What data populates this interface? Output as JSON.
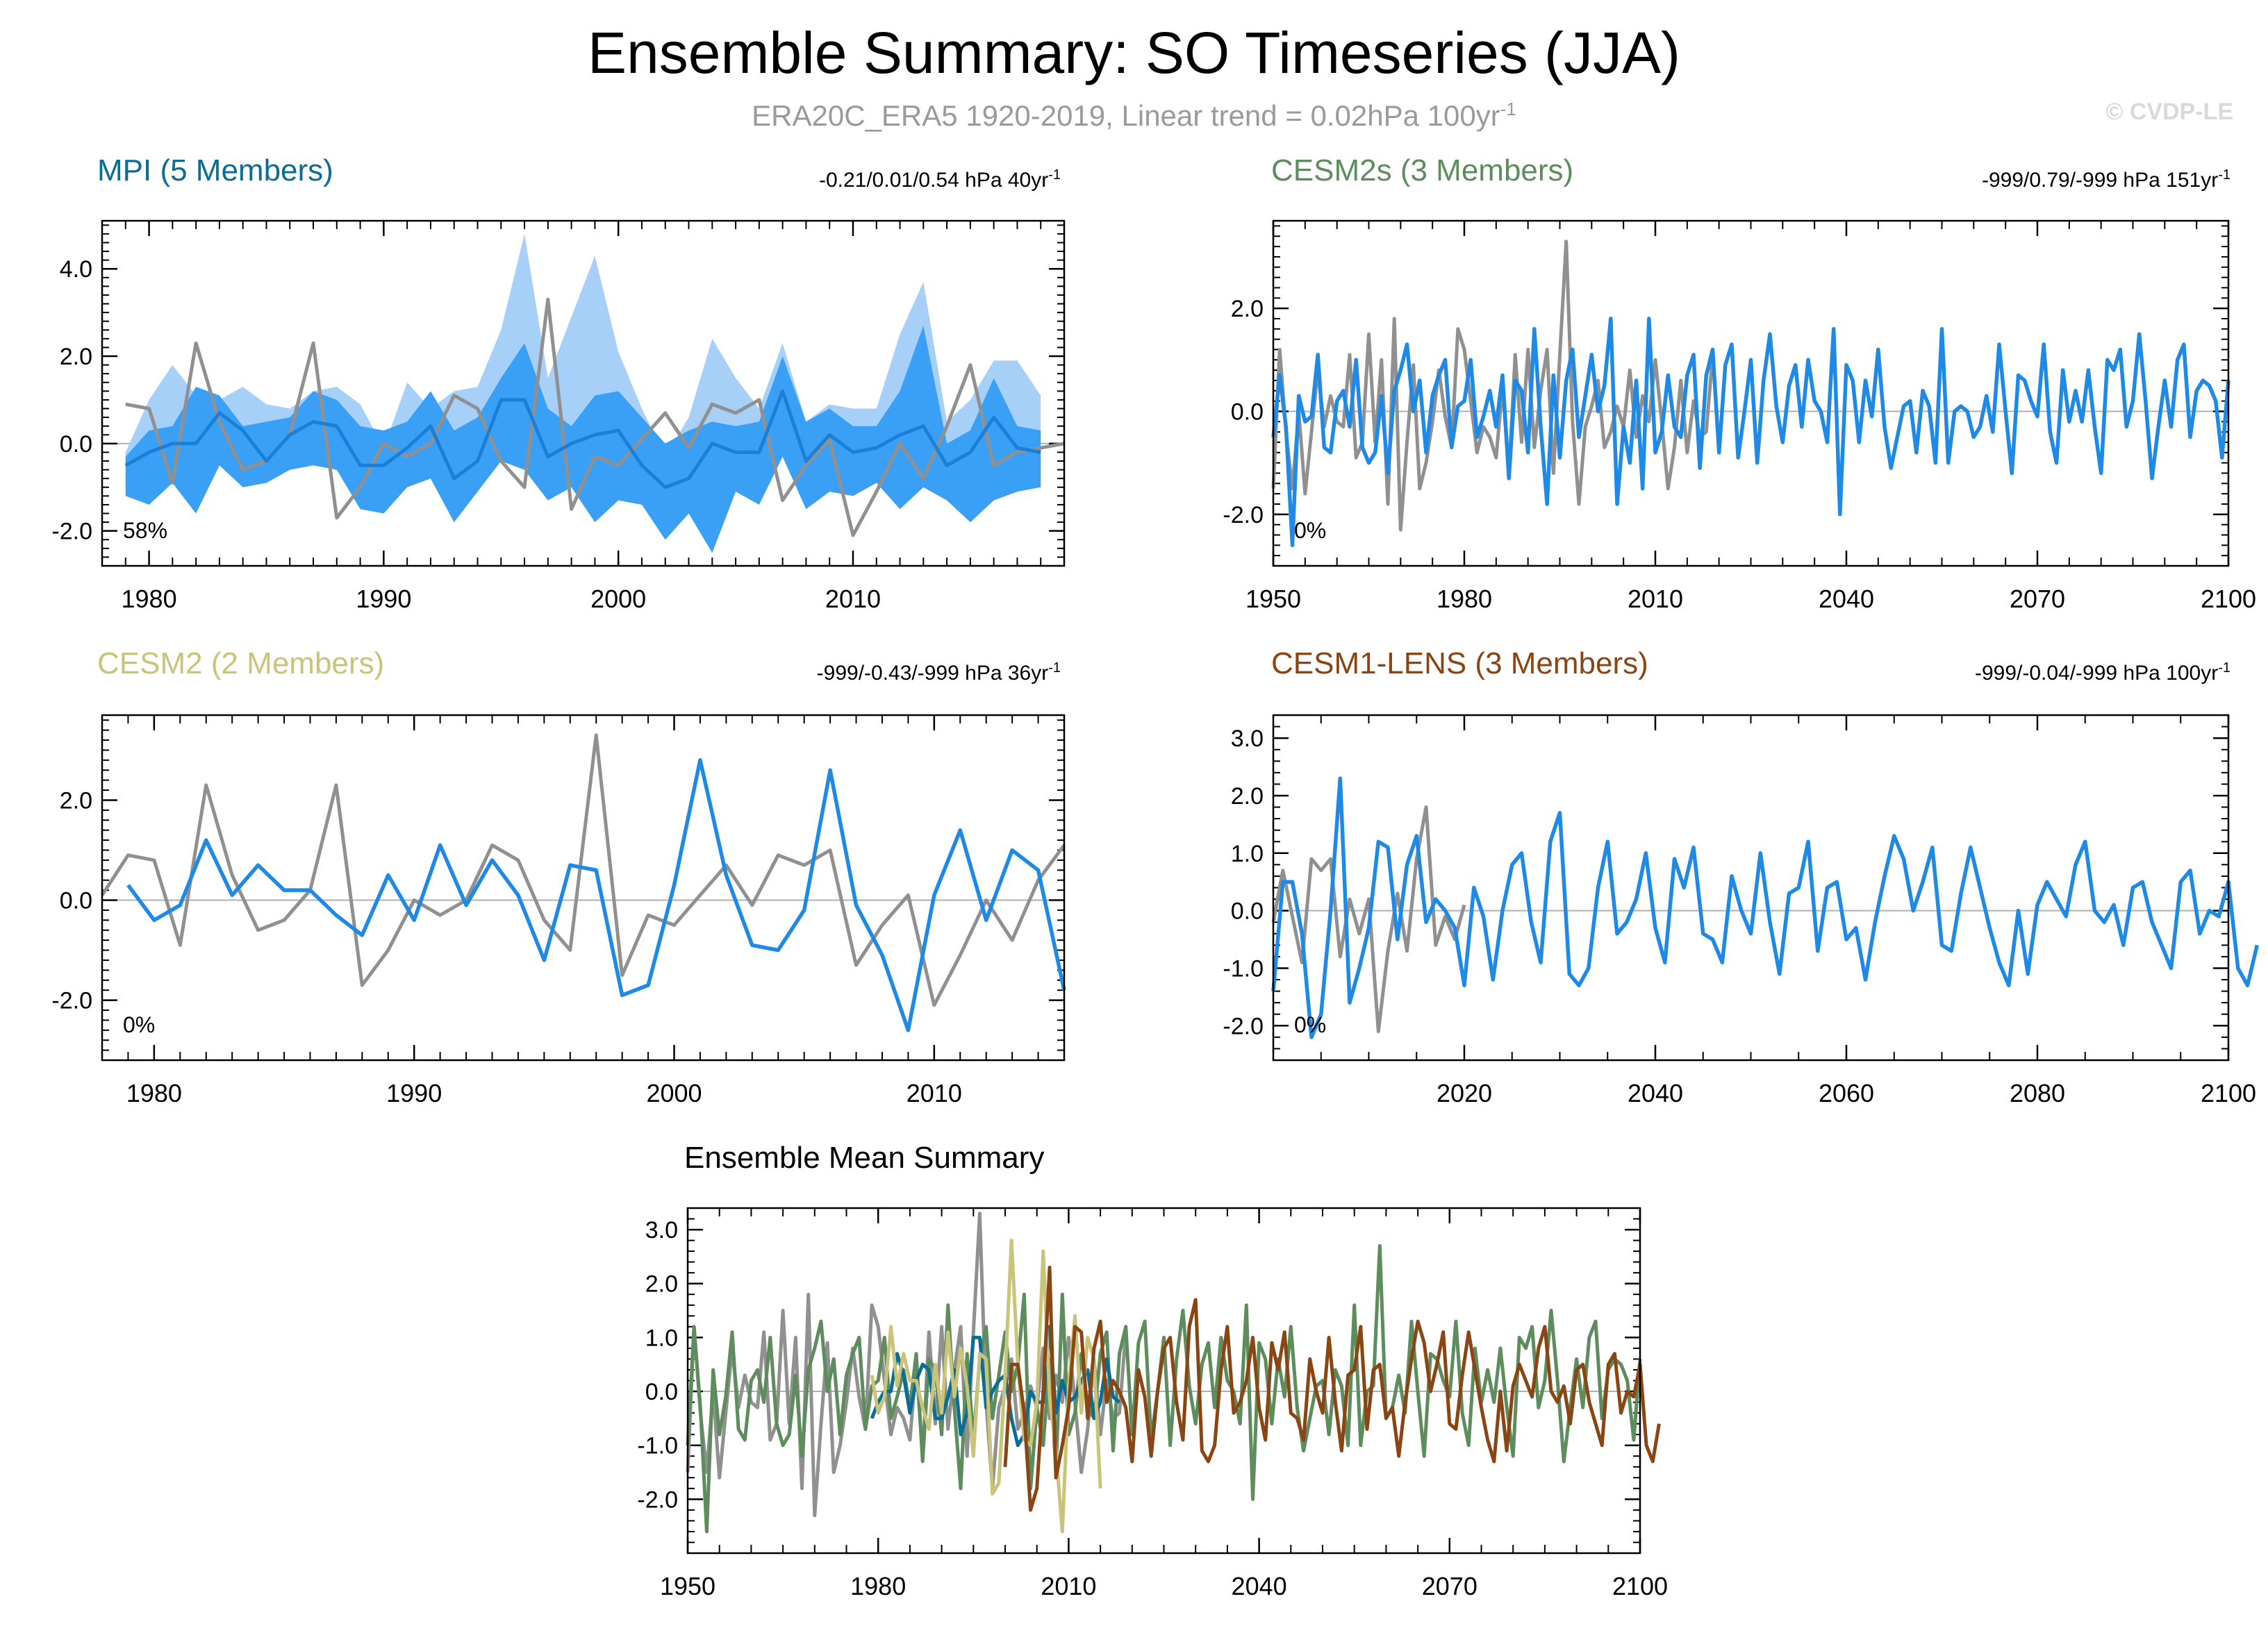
{
  "header": {
    "title": "Ensemble Summary: SO Timeseries (JJA)",
    "subtitle_main": "ERA20C_ERA5 1920-2019, Linear trend = 0.02hPa 100yr",
    "subtitle_sup": "-1",
    "copyright": "© CVDP-LE"
  },
  "colors": {
    "obs": "#909090",
    "mpi": "#0a6d96",
    "cesm2s": "#5d8c5d",
    "cesm2": "#c9c47a",
    "cesm1": "#8b4513",
    "member": "#1f8ae6",
    "band_outer": "#a6d0f8",
    "band_inner": "#3aa0f6"
  },
  "chart_data": [
    {
      "id": "mpi",
      "type": "line",
      "title": "MPI (5 Members)",
      "stat": "-0.21/0.01/0.54 hPa 40yr",
      "stat_sup": "-1",
      "percent_label": "58%",
      "xlim": [
        1978,
        2019
      ],
      "ylim": [
        -2.8,
        5.1
      ],
      "yticks": [
        -2,
        0,
        2,
        4
      ],
      "ytick_labels": [
        "-2.0",
        "0.0",
        "2.0",
        "4.0"
      ],
      "xticks": [
        1980,
        1990,
        2000,
        2010
      ],
      "xtick_labels": [
        "1980",
        "1990",
        "2000",
        "2010"
      ],
      "x_start": 1979,
      "observed": [
        0.9,
        0.8,
        -0.9,
        2.3,
        0.5,
        -0.6,
        -0.4,
        0.2,
        2.3,
        -1.7,
        -1.0,
        0.0,
        -0.3,
        0.0,
        1.1,
        0.8,
        -0.4,
        -1.0,
        3.3,
        -1.5,
        -0.3,
        -0.5,
        0.1,
        0.7,
        -0.1,
        0.9,
        0.7,
        1.0,
        -1.3,
        -0.5,
        0.1,
        -2.1,
        -1.1,
        0.0,
        -0.8,
        0.4,
        1.8,
        -0.5,
        -0.2,
        -0.1,
        0.0
      ],
      "ensemble_mean": [
        -0.5,
        -0.2,
        0.0,
        0.0,
        0.7,
        0.3,
        -0.4,
        0.2,
        0.5,
        0.4,
        -0.5,
        -0.5,
        -0.1,
        0.4,
        -0.8,
        -0.4,
        1.0,
        1.0,
        -0.3,
        0.0,
        0.2,
        0.3,
        -0.5,
        -1.0,
        -0.8,
        0.0,
        -0.2,
        -0.2,
        1.2,
        -0.4,
        0.2,
        -0.2,
        -0.1,
        0.2,
        0.4,
        -0.5,
        -0.2,
        0.6,
        -0.1,
        -0.2
      ],
      "band_inner_upper": [
        -0.3,
        0.3,
        0.4,
        1.3,
        1.1,
        0.4,
        0.5,
        0.6,
        1.2,
        1.0,
        0.4,
        0.3,
        0.5,
        1.2,
        0.3,
        0.6,
        1.5,
        2.3,
        0.8,
        0.4,
        1.1,
        1.2,
        0.6,
        0.0,
        0.3,
        0.5,
        0.4,
        0.5,
        2.0,
        0.5,
        0.8,
        0.4,
        0.4,
        1.2,
        2.7,
        0.0,
        0.3,
        1.5,
        0.4,
        0.3
      ],
      "band_inner_lower": [
        -1.2,
        -1.4,
        -0.9,
        -1.6,
        -0.5,
        -1.0,
        -0.9,
        -0.6,
        -0.5,
        -0.6,
        -1.5,
        -1.6,
        -1.0,
        -0.8,
        -1.8,
        -1.1,
        -0.4,
        -0.6,
        -1.3,
        -1.0,
        -1.8,
        -1.3,
        -1.4,
        -2.2,
        -1.6,
        -2.5,
        -1.1,
        -1.4,
        -0.3,
        -1.5,
        -1.1,
        -1.2,
        -0.9,
        -1.5,
        -1.0,
        -1.3,
        -1.8,
        -1.3,
        -1.1,
        -1.0
      ],
      "band_outer_upper": [
        -0.2,
        1.0,
        1.8,
        1.1,
        1.0,
        1.3,
        0.9,
        0.8,
        1.2,
        1.3,
        0.9,
        -0.1,
        1.4,
        0.8,
        1.2,
        1.3,
        2.6,
        4.8,
        1.5,
        2.9,
        4.3,
        2.1,
        0.8,
        -0.3,
        0.6,
        2.4,
        1.5,
        0.8,
        2.3,
        0.5,
        0.9,
        0.8,
        0.8,
        2.5,
        3.7,
        0.5,
        1.0,
        1.9,
        1.9,
        1.1
      ],
      "band_outer_lower": [
        -1.2,
        -1.4,
        -0.9,
        -1.6,
        -0.5,
        -1.0,
        -0.9,
        -0.6,
        -0.5,
        -0.6,
        -1.5,
        -1.6,
        -1.0,
        -0.8,
        -1.8,
        -1.1,
        -0.4,
        -0.6,
        -1.3,
        -1.0,
        -1.8,
        -1.3,
        -1.4,
        -2.2,
        -1.6,
        -2.5,
        -1.1,
        -1.4,
        -0.3,
        -1.5,
        -1.1,
        -1.2,
        -0.9,
        -1.5,
        -1.0,
        -1.3,
        -1.8,
        -1.3,
        -1.1,
        -1.0
      ]
    },
    {
      "id": "cesm2s",
      "type": "line",
      "title": "CESM2s (3 Members)",
      "stat": "-999/0.79/-999 hPa 151yr",
      "stat_sup": "-1",
      "percent_label": "0%",
      "xlim": [
        1950,
        2100
      ],
      "ylim": [
        -3.0,
        3.7
      ],
      "yticks": [
        -2,
        0,
        2
      ],
      "ytick_labels": [
        "-2.0",
        "0.0",
        "2.0"
      ],
      "xticks": [
        1950,
        1980,
        2010,
        2040,
        2070,
        2100
      ],
      "xtick_labels": [
        "1950",
        "1980",
        "2010",
        "2040",
        "2070",
        "2100"
      ],
      "obs_x_start": 1950,
      "observed": [
        -1.5,
        1.2,
        -0.4,
        -1.5,
        0.0,
        -1.6,
        -0.4,
        0.8,
        -0.3,
        0.3,
        -0.2,
        -0.3,
        1.1,
        -0.9,
        -0.6,
        1.5,
        -0.6,
        1.0,
        -1.8,
        1.8,
        -2.3,
        -0.6,
        0.9,
        -1.5,
        -1.0,
        -0.2,
        0.8,
        -0.1,
        -0.7,
        1.6,
        1.2,
        0.2,
        -0.8,
        -0.3,
        -0.5,
        -0.9,
        0.5,
        -1.2,
        1.1,
        -0.6,
        1.2,
        -0.7,
        0.4,
        1.2,
        -1.2,
        1.1,
        3.3,
        -0.2,
        -1.8,
        -0.3,
        0.1,
        0.6,
        -0.7,
        -0.4,
        0.1,
        -0.3,
        0.8,
        -0.5,
        0.3,
        -0.2,
        1.0,
        -0.2,
        -1.5,
        -0.7,
        0.6,
        -0.8,
        0.2,
        -0.5,
        -0.4,
        1.1
      ],
      "member_x_start": 1950,
      "member": [
        -0.5,
        0.7,
        -0.3,
        -2.6,
        0.3,
        -0.2,
        -0.1,
        1.1,
        -0.7,
        -0.8,
        0.2,
        0.4,
        -0.3,
        1.0,
        -0.7,
        -1.0,
        -0.8,
        0.3,
        -1.2,
        0.4,
        0.8,
        1.3,
        0.0,
        0.6,
        -0.8,
        0.3,
        0.7,
        1.0,
        -0.7,
        0.1,
        0.2,
        1.0,
        -0.5,
        -0.1,
        0.4,
        -0.3,
        0.7,
        -1.3,
        0.6,
        0.4,
        -0.8,
        1.6,
        -0.3,
        -1.8,
        0.7,
        -0.9,
        0.6,
        1.2,
        -0.5,
        0.3,
        1.1,
        0.0,
        0.5,
        1.8,
        -1.8,
        -0.3,
        -1.0,
        0.6,
        -1.5,
        1.8,
        -0.8,
        -0.4,
        0.7,
        -0.3,
        -0.5,
        0.7,
        1.1,
        -1.1,
        0.7,
        1.2,
        -0.8,
        0.9,
        1.3,
        -0.9,
        0.0,
        1.0,
        -1.0,
        0.6,
        1.5,
        0.1,
        -0.6,
        0.5,
        0.9,
        -0.3,
        1.0,
        0.2,
        0.0,
        -0.6,
        1.6,
        -2.0,
        0.9,
        0.6,
        -0.6,
        0.6,
        -0.1,
        1.2,
        -0.3,
        -1.1,
        -0.5,
        0.1,
        0.2,
        -0.8,
        0.4,
        0.1,
        -1.0,
        1.6,
        -1.0,
        0.0,
        0.1,
        0.0,
        -0.5,
        -0.3,
        0.3,
        -0.4,
        1.3,
        0.0,
        -1.2,
        0.7,
        0.6,
        0.2,
        -0.1,
        1.3,
        -0.4,
        -1.0,
        0.8,
        -0.2,
        0.4,
        -0.2,
        0.8,
        -0.3,
        -1.2,
        1.0,
        0.8,
        1.2,
        -0.3,
        0.2,
        1.5,
        0.2,
        -1.3,
        -0.3,
        0.6,
        -0.3,
        1.0,
        1.3,
        -0.5,
        0.4,
        0.6,
        0.5,
        0.2,
        -0.9,
        0.6
      ],
      "ensemble_mean": [
        -1.0,
        1.2,
        -0.3,
        -2.6,
        0.4,
        -0.8,
        -0.1,
        1.1,
        -0.7,
        -0.9,
        0.2,
        0.4,
        -0.2,
        1.0,
        -0.6,
        -1.0,
        -0.8,
        0.3,
        -1.2,
        0.4,
        0.8,
        1.3,
        0.0,
        0.6,
        -0.8,
        0.3,
        0.7,
        1.0,
        -0.7,
        0.1,
        0.2,
        1.0,
        -0.5,
        -0.1,
        0.4,
        -0.3,
        0.7,
        -1.3,
        0.6,
        0.4,
        -0.8,
        1.6,
        -0.3,
        -1.8,
        0.7,
        -0.9,
        0.6,
        1.2,
        -0.5,
        0.3,
        1.1,
        0.0,
        0.5,
        1.8,
        -1.8,
        -0.3,
        -1.0,
        0.6,
        -1.5,
        1.8,
        -0.8,
        -0.4,
        0.7,
        -0.3,
        -0.5,
        0.7,
        1.1,
        -1.1,
        0.7,
        1.2,
        -0.8,
        0.9,
        1.3,
        -0.9,
        0.0,
        1.0,
        -1.0,
        0.6,
        1.5,
        0.1,
        -0.6,
        0.5,
        0.9,
        -0.3,
        1.0,
        0.2,
        0.0,
        -0.6,
        1.6,
        -2.0,
        0.9,
        0.6,
        -0.6,
        0.6,
        -0.1,
        1.2,
        -0.3,
        -1.1,
        -0.5,
        0.1,
        0.2,
        -0.8,
        0.4,
        0.1,
        -1.0,
        1.6,
        -1.0,
        0.0,
        0.1,
        2.7,
        -0.5,
        -0.3,
        0.3,
        -0.4,
        1.3,
        0.0,
        -1.2,
        0.7,
        0.6,
        0.2,
        -0.1,
        1.3,
        -0.4,
        -1.0,
        0.8,
        -0.2,
        0.4,
        -0.2,
        0.8,
        -0.3,
        -1.2,
        1.0,
        0.8,
        1.2,
        -0.3,
        0.2,
        1.5,
        0.2,
        -1.3,
        -0.3,
        0.6,
        -0.3,
        1.0,
        1.3,
        -0.5,
        0.4,
        0.6,
        0.5,
        0.2,
        -0.9,
        0.6
      ]
    },
    {
      "id": "cesm2",
      "type": "line",
      "title": "CESM2 (2 Members)",
      "stat": "-999/-0.43/-999 hPa 36yr",
      "stat_sup": "-1",
      "percent_label": "0%",
      "xlim": [
        1978,
        2015
      ],
      "ylim": [
        -3.2,
        3.7
      ],
      "yticks": [
        -2,
        0,
        2
      ],
      "ytick_labels": [
        "-2.0",
        "0.0",
        "2.0"
      ],
      "xticks": [
        1980,
        1990,
        2000,
        2010
      ],
      "xtick_labels": [
        "1980",
        "1990",
        "2000",
        "2010"
      ],
      "obs_x_start": 1978,
      "observed": [
        0.1,
        0.9,
        0.8,
        -0.9,
        2.3,
        0.5,
        -0.6,
        -0.4,
        0.2,
        2.3,
        -1.7,
        -1.0,
        0.0,
        -0.3,
        0.0,
        1.1,
        0.8,
        -0.4,
        -1.0,
        3.3,
        -1.5,
        -0.3,
        -0.5,
        0.1,
        0.7,
        -0.1,
        0.9,
        0.7,
        1.0,
        -1.3,
        -0.5,
        0.1,
        -2.1,
        -1.1,
        0.0,
        -0.8,
        0.4,
        1.1
      ],
      "member_x_start": 1979,
      "member": [
        0.3,
        -0.4,
        -0.1,
        1.2,
        0.1,
        0.7,
        0.2,
        0.2,
        -0.3,
        -0.7,
        0.5,
        -0.4,
        1.1,
        -0.1,
        0.8,
        0.1,
        -1.2,
        0.7,
        0.6,
        -1.9,
        -1.7,
        0.3,
        2.8,
        0.5,
        -0.9,
        -1.0,
        -0.2,
        2.6,
        -0.1,
        -1.1,
        -2.6,
        0.1,
        1.4,
        -0.4,
        1.0,
        0.6,
        -1.8
      ]
    },
    {
      "id": "cesm1",
      "type": "line",
      "title": "CESM1-LENS (3 Members)",
      "stat": "-999/-0.04/-999 hPa 100yr",
      "stat_sup": "-1",
      "percent_label": "0%",
      "xlim": [
        2000,
        2100
      ],
      "ylim": [
        -2.6,
        3.4
      ],
      "yticks": [
        -2,
        -1,
        0,
        1,
        2,
        3
      ],
      "ytick_labels": [
        "-2.0",
        "-1.0",
        "0.0",
        "1.0",
        "2.0",
        "3.0"
      ],
      "xticks": [
        2020,
        2040,
        2060,
        2080,
        2100
      ],
      "xtick_labels": [
        "2020",
        "2040",
        "2060",
        "2080",
        "2100"
      ],
      "obs_x_start": 2000,
      "observed": [
        -0.2,
        0.7,
        -0.1,
        -0.9,
        0.9,
        0.7,
        0.9,
        -0.8,
        0.2,
        -0.4,
        0.2,
        -2.1,
        -0.7,
        0.3,
        -0.7,
        0.9,
        1.8,
        -0.6,
        -0.1,
        -0.5,
        0.1
      ],
      "member_x_start": 2000,
      "member": [
        -1.4,
        0.5,
        0.5,
        -0.4,
        -2.2,
        -1.8,
        0.0,
        2.3,
        -1.6,
        -1.0,
        -0.3,
        1.2,
        1.1,
        -0.5,
        0.8,
        1.3,
        -0.2,
        0.2,
        0.0,
        -0.3,
        -1.3,
        0.4,
        -0.1,
        -1.2,
        0.0,
        0.8,
        1.0,
        -0.2,
        -0.9,
        1.2,
        1.7,
        -1.1,
        -1.3,
        -1.0,
        0.4,
        1.2,
        -0.4,
        -0.2,
        0.2,
        1.0,
        -0.3,
        -0.9,
        0.9,
        0.4,
        1.1,
        -0.4,
        -0.5,
        -0.9,
        0.6,
        0.0,
        -0.4,
        1.0,
        -0.2,
        -1.1,
        0.3,
        0.4,
        1.2,
        -0.7,
        0.4,
        0.5,
        -0.5,
        -0.3,
        -1.2,
        -0.2,
        0.6,
        1.3,
        0.9,
        0.0,
        0.5,
        1.1,
        -0.6,
        -0.7,
        0.3,
        1.1,
        0.4,
        -0.3,
        -0.9,
        -1.3,
        0.0,
        -1.1,
        0.1,
        0.5,
        0.2,
        -0.1,
        0.8,
        1.2,
        0.0,
        -0.2,
        0.1,
        -0.6,
        0.4,
        0.5,
        -0.2,
        -0.6,
        -1.0,
        0.5,
        0.7,
        -0.4,
        0.0,
        -0.1,
        0.5,
        -1.0,
        -1.3,
        -0.6
      ]
    },
    {
      "id": "summary",
      "type": "line",
      "title": "Ensemble Mean Summary",
      "xlim": [
        1950,
        2100
      ],
      "ylim": [
        -3.0,
        3.4
      ],
      "yticks": [
        -2,
        -1,
        0,
        1,
        2,
        3
      ],
      "ytick_labels": [
        "-2.0",
        "-1.0",
        "0.0",
        "1.0",
        "2.0",
        "3.0"
      ],
      "xticks": [
        1950,
        1980,
        2010,
        2040,
        2070,
        2100
      ],
      "xtick_labels": [
        "1950",
        "1980",
        "2010",
        "2040",
        "2070",
        "2100"
      ],
      "series": [
        {
          "name": "ERA20C_ERA5",
          "color_key": "obs",
          "x_start": 1950
        },
        {
          "name": "CESM2s",
          "color_key": "cesm2s",
          "x_start": 1950
        },
        {
          "name": "MPI",
          "color_key": "mpi",
          "x_start": 1979
        },
        {
          "name": "CESM2",
          "color_key": "cesm2",
          "x_start": 1979
        },
        {
          "name": "CESM1-LENS",
          "color_key": "cesm1",
          "x_start": 2000
        }
      ]
    }
  ]
}
